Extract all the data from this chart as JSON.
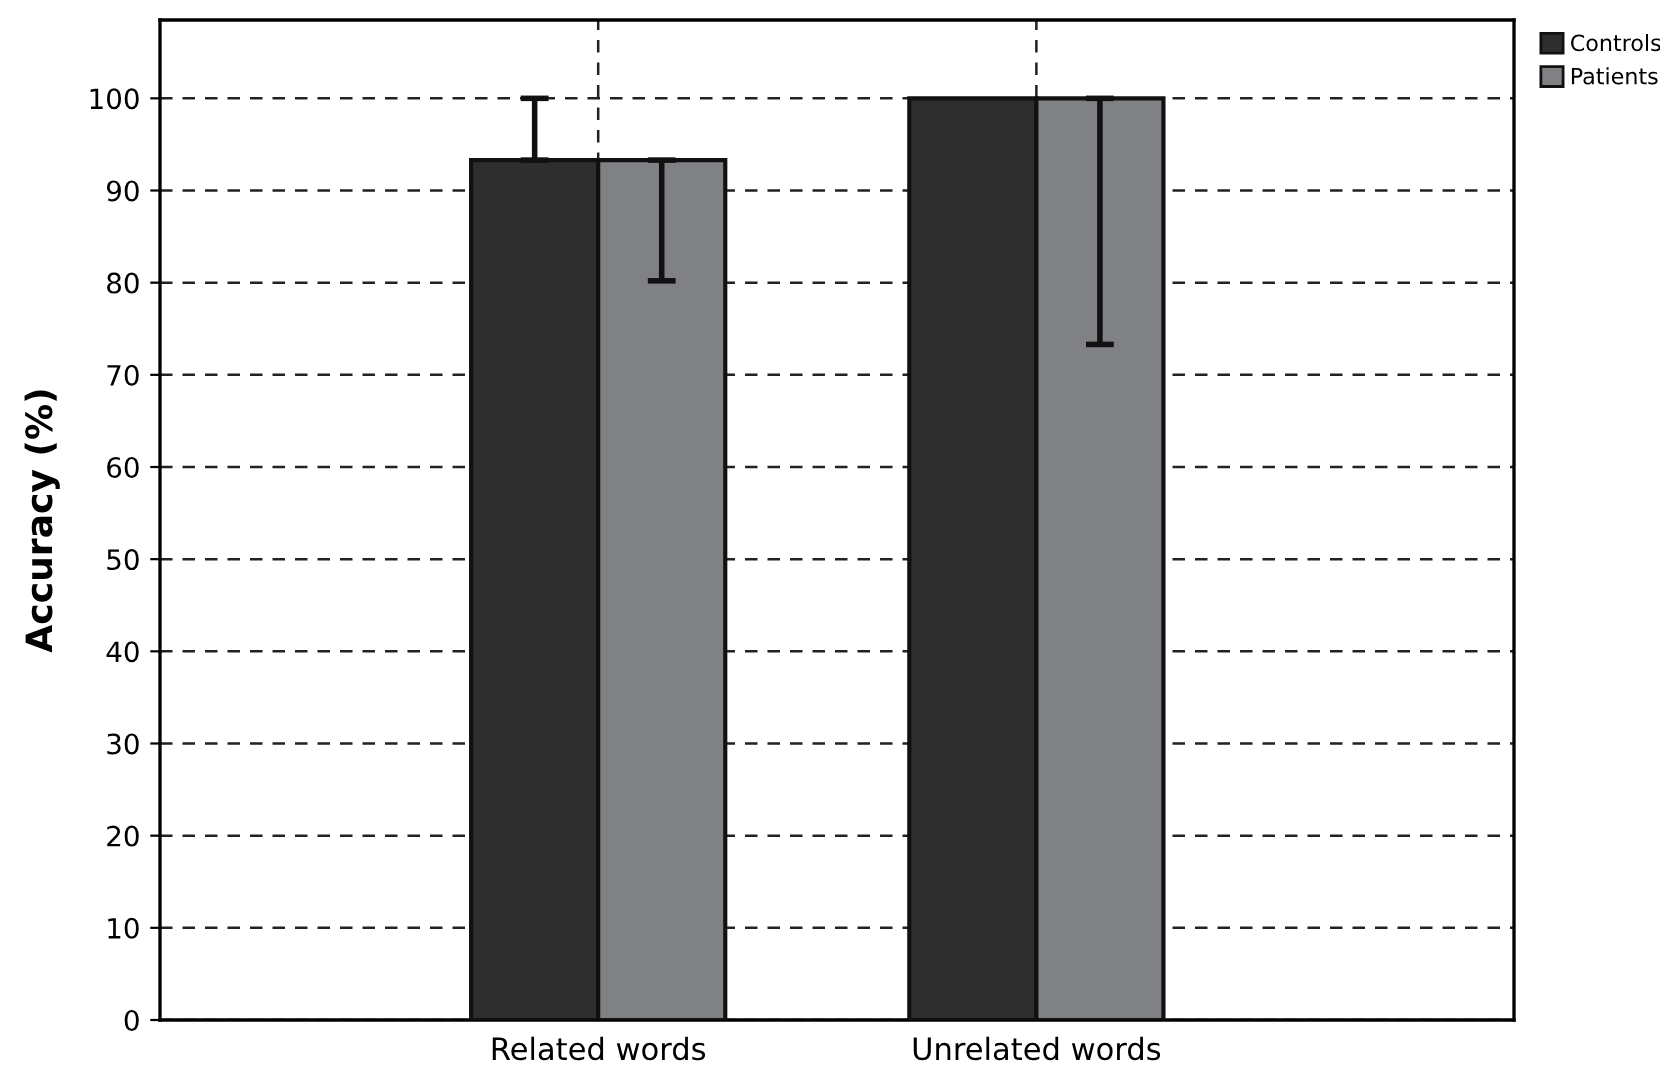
{
  "chart_data": {
    "type": "bar",
    "ylabel": "Accuracy (%)",
    "categories": [
      "Related words",
      "Unrelated words"
    ],
    "series": [
      {
        "name": "Controls",
        "color": "#2e2e2e",
        "values": [
          93.3,
          100
        ],
        "errors": [
          [
            93.3,
            100
          ],
          null
        ]
      },
      {
        "name": "Patients",
        "color": "#808184",
        "values": [
          93.3,
          100
        ],
        "errors": [
          [
            80.2,
            93.3
          ],
          [
            73.3,
            100
          ]
        ]
      }
    ],
    "ylim": [
      0,
      108.5
    ],
    "yticks": [
      0,
      10,
      20,
      30,
      40,
      50,
      60,
      70,
      80,
      90,
      100
    ],
    "grid": true,
    "legend": "top right"
  }
}
